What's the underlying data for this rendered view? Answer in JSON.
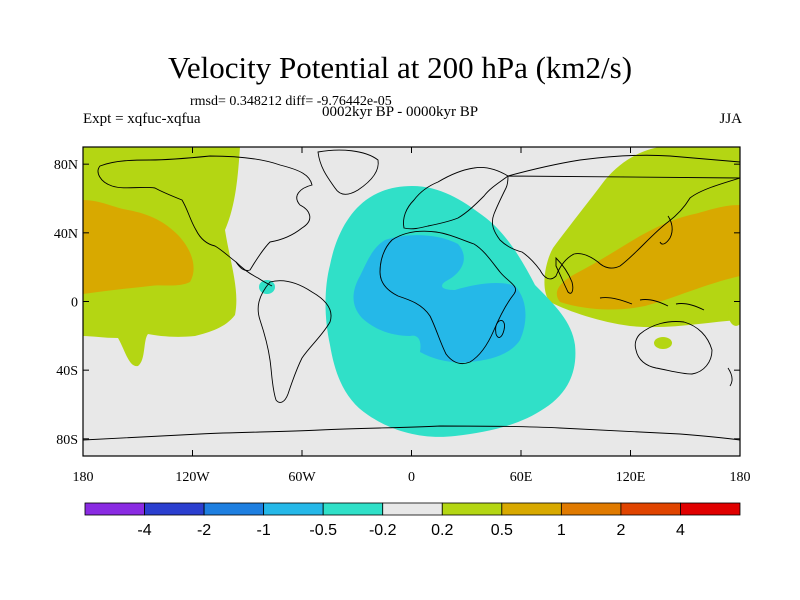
{
  "title": "Velocity Potential at 200 hPa (km2/s)",
  "stats": "rmsd= 0.348212 diff= -9.76442e-05",
  "experiment": "Expt = xqfuc-xqfua",
  "period": "0002kyr BP - 0000kyr BP",
  "season": "JJA",
  "map": {
    "lon_range": [
      -180,
      180
    ],
    "lat_range": [
      -90,
      90
    ],
    "x_ticks": [
      {
        "value": -180,
        "label": "180"
      },
      {
        "value": -120,
        "label": "120W"
      },
      {
        "value": -60,
        "label": "60W"
      },
      {
        "value": 0,
        "label": "0"
      },
      {
        "value": 60,
        "label": "60E"
      },
      {
        "value": 120,
        "label": "120E"
      },
      {
        "value": 180,
        "label": "180"
      }
    ],
    "y_ticks": [
      {
        "value": 80,
        "label": "80N"
      },
      {
        "value": 40,
        "label": "40N"
      },
      {
        "value": 0,
        "label": "0"
      },
      {
        "value": -40,
        "label": "40S"
      },
      {
        "value": -80,
        "label": "80S"
      }
    ],
    "background_color": "#e8e8e8"
  },
  "colorbar": {
    "colors": [
      "#8a2be2",
      "#2b3fcf",
      "#1e7fe0",
      "#25b8e8",
      "#30e0c8",
      "#e8e8e8",
      "#b4d613",
      "#d8a900",
      "#e07a00",
      "#e04400",
      "#e00000"
    ],
    "labels": [
      "-4",
      "-2",
      "-1",
      "-0.5",
      "-0.2",
      "0.2",
      "0.5",
      "1",
      "2",
      "4"
    ]
  },
  "contour_colors": {
    "neg_mid": "#30e0c8",
    "neg_strong": "#25b8e8",
    "pos_mid": "#b4d613",
    "pos_strong": "#d8a900"
  }
}
